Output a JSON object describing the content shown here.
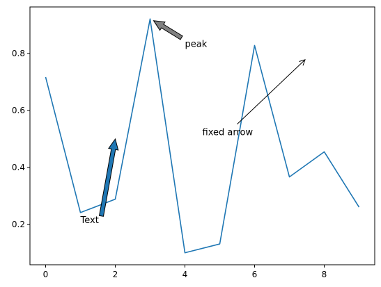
{
  "chart_data": {
    "type": "line",
    "title": "",
    "xlabel": "",
    "ylabel": "",
    "xlim": [
      -0.45,
      9.45
    ],
    "ylim": [
      0.059,
      0.963
    ],
    "grid": false,
    "x_ticks": [
      0,
      2,
      4,
      6,
      8
    ],
    "x_tick_labels": [
      "0",
      "2",
      "4",
      "6",
      "8"
    ],
    "y_ticks": [
      0.2,
      0.4,
      0.6,
      0.8
    ],
    "y_tick_labels": [
      "0.2",
      "0.4",
      "0.6",
      "0.8"
    ],
    "series": [
      {
        "color": "#1f77b4",
        "x": [
          0,
          1,
          2,
          3,
          4,
          5,
          6,
          7,
          8,
          9
        ],
        "values": [
          0.717,
          0.242,
          0.289,
          0.921,
          0.101,
          0.132,
          0.828,
          0.367,
          0.455,
          0.261
        ]
      }
    ],
    "annotations": [
      {
        "text": "Text",
        "text_at": [
          1,
          0.205
        ],
        "arrow_from": [
          1.6,
          0.23
        ],
        "arrow_to": [
          2,
          0.5
        ],
        "arrow_style": "fancy",
        "arrow_color": "#1f77b4"
      },
      {
        "text": "peak",
        "text_at": [
          4,
          0.823
        ],
        "arrow_from": [
          3.9,
          0.855
        ],
        "arrow_to": [
          3.1,
          0.915
        ],
        "arrow_style": "fancy",
        "arrow_color": "#808080"
      },
      {
        "text": "fixed arrow",
        "text_at": [
          4.5,
          0.513
        ],
        "arrow_from": [
          5.5,
          0.552
        ],
        "arrow_to": [
          7.45,
          0.778
        ],
        "arrow_style": "simple",
        "arrow_color": "#000000"
      }
    ]
  }
}
